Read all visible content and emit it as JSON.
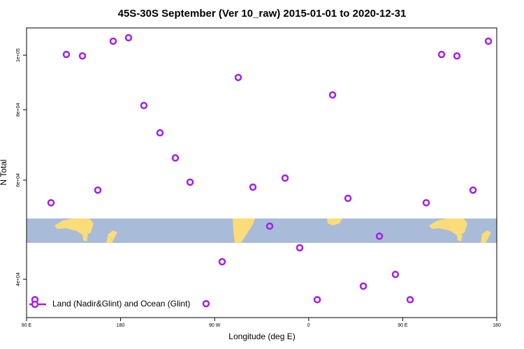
{
  "chart_data": {
    "type": "scatter",
    "title": "45S-30S September (Ver 10_raw)   2015-01-01 to 2020-12-31",
    "x_label": "Longitude (deg E)",
    "y_label": "N Total",
    "log_y": true,
    "legend_position": "bottom-left",
    "xlim": [
      90,
      540
    ],
    "xticks": [
      {
        "value": 90,
        "label": "90 E"
      },
      {
        "value": 180,
        "label": "180"
      },
      {
        "value": 270,
        "label": "90 W"
      },
      {
        "value": 360,
        "label": "0"
      },
      {
        "value": 450,
        "label": "90 E"
      },
      {
        "value": 540,
        "label": "180"
      }
    ],
    "ylim": [
      34200,
      111800
    ],
    "yticks": [
      {
        "value": 40000,
        "label": "4e+04"
      },
      {
        "value": 60000,
        "label": "6e+04"
      },
      {
        "value": 80000,
        "label": "8e+04"
      },
      {
        "value": 100000,
        "label": "1e+05"
      }
    ],
    "series": [
      {
        "name": "Land (Nadir&Glint) and Ocean (Glint)",
        "color": "#a020f0",
        "x": [
          98.0,
          113.4,
          128.1,
          143.5,
          158.2,
          172.9,
          187.6,
          202.3,
          217.7,
          232.4,
          246.5,
          261.8,
          277.2,
          292.6,
          306.6,
          322.7,
          337.4,
          351.4,
          368.2,
          382.9,
          397.6,
          412.3,
          427.7,
          443.0,
          457.1,
          472.5,
          487.2,
          501.9,
          517.3,
          532.0
        ],
        "values": [
          36800,
          54700,
          100300,
          99700,
          57600,
          105900,
          107400,
          81400,
          72800,
          65700,
          59500,
          36200,
          42970,
          91300,
          58300,
          49700,
          60500,
          45500,
          36800,
          85000,
          55700,
          38900,
          47700,
          40800,
          36800,
          54700,
          100300,
          99700,
          57600,
          105900
        ]
      }
    ]
  }
}
